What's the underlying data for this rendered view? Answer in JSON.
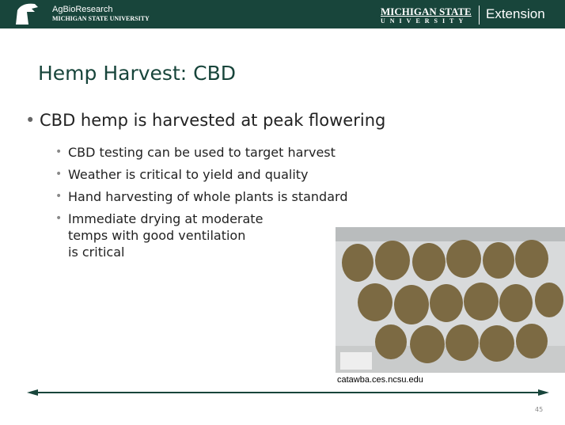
{
  "header": {
    "brand": "AgBioResearch",
    "brand_sub": "MICHIGAN STATE UNIVERSITY",
    "msu": "MICHIGAN STATE",
    "msu_sub": "UNIVERSITY",
    "unit": "Extension"
  },
  "title": "Hemp Harvest: CBD",
  "bullet": "CBD hemp is harvested at peak flowering",
  "sub_bullets": [
    "CBD testing can be used to target harvest",
    "Weather is critical to yield and quality",
    "Hand harvesting of whole plants is standard"
  ],
  "last_bullet_lines": [
    "Immediate drying at moderate",
    "temps with good ventilation",
    "is critical"
  ],
  "image_caption": "catawba.ces.ncsu.edu",
  "page_number": "45"
}
